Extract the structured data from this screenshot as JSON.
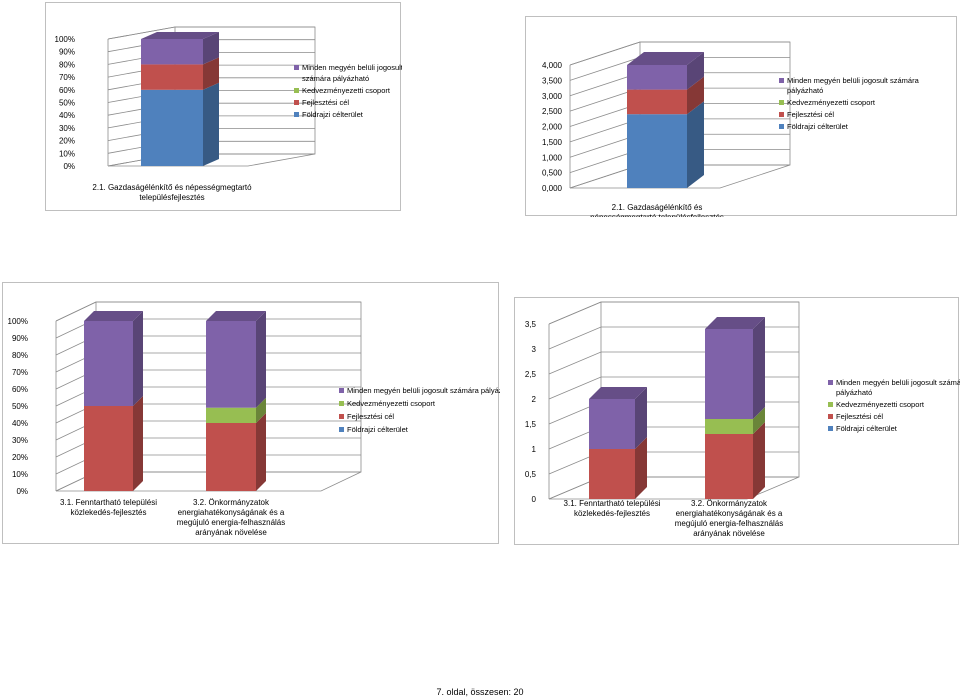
{
  "footer": "7. oldal, összesen: 20",
  "colors": {
    "Minden megyén belüli jogosult számára pályázható": "#7f62a9",
    "Kedvezményezetti csoport": "#97be52",
    "Fejlesztési cél": "#c0504d",
    "Földrajzi célterület": "#4f81bd"
  },
  "chart_data": [
    {
      "type": "bar",
      "stacked": true,
      "percent": true,
      "three_d": true,
      "categories": [
        [
          "2.1. Gazdaságélénkítő és népességmegtartó",
          "településfejlesztés"
        ]
      ],
      "series": [
        {
          "name": "Földrajzi célterület",
          "values": [
            0.6
          ]
        },
        {
          "name": "Fejlesztési cél",
          "values": [
            0.2
          ]
        },
        {
          "name": "Kedvezményezetti csoport",
          "values": [
            0
          ]
        },
        {
          "name": "Minden megyén belüli jogosult számára pályázható",
          "values": [
            0.2
          ]
        }
      ],
      "legend": [
        [
          "Minden megyén belüli jogosult",
          "számára pályázható"
        ],
        [
          "Kedvezményezetti csoport"
        ],
        [
          "Fejlesztési cél"
        ],
        [
          "Földrajzi célterület"
        ]
      ],
      "yticks": [
        "0%",
        "10%",
        "20%",
        "30%",
        "40%",
        "50%",
        "60%",
        "70%",
        "80%",
        "90%",
        "100%"
      ],
      "ylim": [
        0,
        1
      ],
      "legend_position": "right"
    },
    {
      "type": "bar",
      "stacked": true,
      "three_d": true,
      "categories": [
        [
          "2.1. Gazdaságélénkítő és",
          "népességmegtartó településfejlesztés"
        ]
      ],
      "series": [
        {
          "name": "Földrajzi célterület",
          "values": [
            2.4
          ]
        },
        {
          "name": "Fejlesztési cél",
          "values": [
            0.8
          ]
        },
        {
          "name": "Kedvezményezetti csoport",
          "values": [
            0
          ]
        },
        {
          "name": "Minden megyén belüli jogosult számára pályázható",
          "values": [
            0.8
          ]
        }
      ],
      "legend": [
        [
          "Minden megyén belüli jogosult számára",
          "pályázható"
        ],
        [
          "Kedvezményezetti csoport"
        ],
        [
          "Fejlesztési cél"
        ],
        [
          "Földrajzi célterület"
        ]
      ],
      "yticks": [
        "0,000",
        "0,500",
        "1,000",
        "1,500",
        "2,000",
        "2,500",
        "3,000",
        "3,500",
        "4,000"
      ],
      "ylim": [
        0,
        4
      ],
      "legend_position": "right"
    },
    {
      "type": "bar",
      "stacked": true,
      "percent": true,
      "three_d": true,
      "categories": [
        [
          "3.1. Fenntartható települési",
          "közlekedés-fejlesztés"
        ],
        [
          "3.2. Önkormányzatok",
          "energiahatékonyságának és a",
          "megújuló energia-felhasználás",
          "arányának növelése"
        ]
      ],
      "series": [
        {
          "name": "Földrajzi célterület",
          "values": [
            0,
            0
          ]
        },
        {
          "name": "Fejlesztési cél",
          "values": [
            0.5,
            0.4
          ]
        },
        {
          "name": "Kedvezményezetti csoport",
          "values": [
            0,
            0.09
          ]
        },
        {
          "name": "Minden megyén belüli jogosult számára pályázható",
          "values": [
            0.5,
            0.51
          ]
        }
      ],
      "legend": [
        [
          "Minden megyén belüli jogosult számára pályázható"
        ],
        [
          "Kedvezményezetti csoport"
        ],
        [
          "Fejlesztési cél"
        ],
        [
          "Földrajzi célterület"
        ]
      ],
      "yticks": [
        "0%",
        "10%",
        "20%",
        "30%",
        "40%",
        "50%",
        "60%",
        "70%",
        "80%",
        "90%",
        "100%"
      ],
      "ylim": [
        0,
        1
      ],
      "legend_position": "right"
    },
    {
      "type": "bar",
      "stacked": true,
      "three_d": true,
      "categories": [
        [
          "3.1. Fenntartható települési",
          "közlekedés-fejlesztés"
        ],
        [
          "3.2. Önkormányzatok",
          "energiahatékonyságának és a",
          "megújuló energia-felhasználás",
          "arányának növelése"
        ]
      ],
      "series": [
        {
          "name": "Földrajzi célterület",
          "values": [
            0,
            0
          ]
        },
        {
          "name": "Fejlesztési cél",
          "values": [
            1,
            1.3
          ]
        },
        {
          "name": "Kedvezményezetti csoport",
          "values": [
            0,
            0.3
          ]
        },
        {
          "name": "Minden megyén belüli jogosult számára pályázható",
          "values": [
            1,
            1.8
          ]
        }
      ],
      "legend": [
        [
          "Minden megyén belüli jogosult számára",
          "pályázható"
        ],
        [
          "Kedvezményezetti csoport"
        ],
        [
          "Fejlesztési cél"
        ],
        [
          "Földrajzi célterület"
        ]
      ],
      "yticks": [
        "0",
        "0,5",
        "1",
        "1,5",
        "2",
        "2,5",
        "3",
        "3,5"
      ],
      "ylim": [
        0,
        3.5
      ],
      "legend_position": "right"
    }
  ]
}
